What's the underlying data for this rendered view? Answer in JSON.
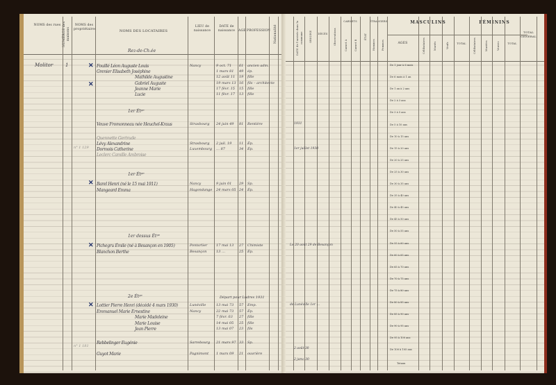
{
  "left_page": {
    "headers": {
      "rue": "NOMS des rues",
      "numero": "NUMÉROS des maisons",
      "proprietaires": "NOMS des propriétaires",
      "locataires": "NOMS DES LOCATAIRES",
      "lieu": "LIEU de naissance",
      "date": "DATE de naissance",
      "age": "AGE",
      "profession": "PROFESSION",
      "extra": "Nationalité"
    },
    "street": "Molitor",
    "house_number": "1",
    "floors": [
      "Rez-de-Ch.ée",
      "1er Étᵍᵉ",
      "1er Étᵍᵉ",
      "1er dessus Étᵍᵉ",
      "2e Étᵍᵉ"
    ],
    "margin_notes": [
      "n° 1 129",
      "n° 1 181"
    ],
    "annotation": "Départ pour Ludres 1931",
    "entries": [
      {
        "name": "Fouillé Léon Auguste Louis",
        "lieu": "Nancy",
        "date": "9 oct. 71",
        "age": "61",
        "profession": "ancien adm."
      },
      {
        "name": "Grenier Elisabeth Joséphine",
        "lieu": "",
        "date": "1 mars 81",
        "age": "49",
        "profession": "ép."
      },
      {
        "name": "Mathilde Augustine",
        "lieu": "",
        "date": "12 août 11",
        "age": "19",
        "profession": "fille"
      },
      {
        "name": "Gabriel Auguste",
        "lieu": "",
        "date": "19 mars 13",
        "age": "16",
        "profession": "fils – architecte"
      },
      {
        "name": "Jeanne Marie",
        "lieu": "",
        "date": "17 févr. 15",
        "age": "15",
        "profession": "fille"
      },
      {
        "name": "Lucie",
        "lieu": "",
        "date": "11 févr. 17",
        "age": "13",
        "profession": "fille"
      },
      {
        "name": "Veuve Fromonneau née Heuchel-Kraus",
        "lieu": "Strasbourg",
        "date": "24 juin 49",
        "age": "81",
        "profession": "Rentière"
      },
      {
        "name": "Quennette Gertrude",
        "lieu": "",
        "date": "",
        "age": "",
        "profession": ""
      },
      {
        "name": "Lévy Alexandrine",
        "lieu": "Strasbourg",
        "date": "2 juil. 19",
        "age": "11",
        "profession": "Ép."
      },
      {
        "name": "Dormois Catherine",
        "lieu": "Luxembourg",
        "date": "… 87",
        "age": "34",
        "profession": "Ép."
      },
      {
        "name": "Leclerc Camille Ambroise",
        "lieu": "",
        "date": "",
        "age": "",
        "profession": ""
      },
      {
        "name": "Barel Henri (né le 15 mai 1911)",
        "lieu": "Nancy",
        "date": "9 juin 01",
        "age": "29",
        "profession": "Sp."
      },
      {
        "name": "Mangeard Emma",
        "lieu": "Hagondange",
        "date": "24 mars 05",
        "age": "24",
        "profession": "Ép."
      },
      {
        "name": "Pichegru Émile (né à Besançon en 1905)",
        "lieu": "Pontarlier",
        "date": "17 mai 13",
        "age": "27",
        "profession": "Chimiste"
      },
      {
        "name": "Blanchon Berthe",
        "lieu": "Besançon",
        "date": "13 …",
        "age": "25",
        "profession": "Ép."
      },
      {
        "name": "Lottier Pierre Henri (décédé 4 mars 1930)",
        "lieu": "Lunéville",
        "date": "13 mai 73",
        "age": "57",
        "profession": "Emp."
      },
      {
        "name": "Emmanuel Marie Ernestine",
        "lieu": "Nancy",
        "date": "22 mai 73",
        "age": "57",
        "profession": "Ép."
      },
      {
        "name": "Marie Madeleine",
        "lieu": "",
        "date": "7 févr. 03",
        "age": "27",
        "profession": "fille"
      },
      {
        "name": "Marie Louise",
        "lieu": "",
        "date": "14 mai 05",
        "age": "25",
        "profession": "fille"
      },
      {
        "name": "Jean Pierre",
        "lieu": "",
        "date": "13 mai 07",
        "age": "23",
        "profession": "fils"
      },
      {
        "name": "Rebbelinger Eugénie",
        "lieu": "Sarrebourg",
        "date": "21 mars 97",
        "age": "33",
        "profession": "Sp."
      },
      {
        "name": "Guyot Marie",
        "lieu": "Pagnimont",
        "date": "1 mars 09",
        "age": "21",
        "profession": "ouvrière"
      }
    ]
  },
  "right_page": {
    "headers": {
      "date_arrivee": "DATE de l'arrivée dans la commune",
      "origine": "ORIGINE",
      "deces": "DÉCÈS",
      "observations": "Observations",
      "passeports": "CARNETS",
      "carnet_a": "Carnet A",
      "carnet_b": "Carnet B",
      "etat": "ÉTAT",
      "etrangers": "ÉTRANGERS",
      "hommes": "Hommes",
      "femmes": "Femmes",
      "masculins": "MASCULINS",
      "feminins": "FÉMININS",
      "ages": "AGES",
      "celibataires": "Célibataires",
      "maries": "Mariés",
      "veufs": "Veufs",
      "total": "TOTAL",
      "celibataires_f": "Célibataires",
      "mariees": "Mariées",
      "veuves": "Veuves",
      "total_f": "TOTAL",
      "total_general": "TOTAL GÉNÉRAL"
    },
    "arrival_notes": [
      "1931",
      "1er juillet 1930",
      "Le 20 août 29 de Besançon",
      "de Lunéville 1er …",
      "2 août 30",
      "2 janv. 30"
    ],
    "age_groups": [
      "De 1 jour à 6 mois",
      "De 6 mois à 1 an",
      "De 1 an à 2 ans",
      "De 2 à 3 ans",
      "De 3 à 5 ans",
      "De 5 à 10 ans",
      "De 10 à 15 ans",
      "De 15 à 20 ans",
      "De 20 à 25 ans",
      "De 25 à 30 ans",
      "De 30 à 35 ans",
      "De 35 à 40 ans",
      "De 40 à 45 ans",
      "De 45 à 50 ans",
      "De 50 à 55 ans",
      "De 55 à 60 ans",
      "De 60 à 65 ans",
      "De 65 à 70 ans",
      "De 70 à 75 ans",
      "De 75 à 80 ans",
      "De 80 à 85 ans",
      "De 85 à 90 ans",
      "De 90 à 95 ans",
      "De 95 à 100 ans",
      "De 100 à 105 ans"
    ],
    "totals_label": "Totaux"
  }
}
